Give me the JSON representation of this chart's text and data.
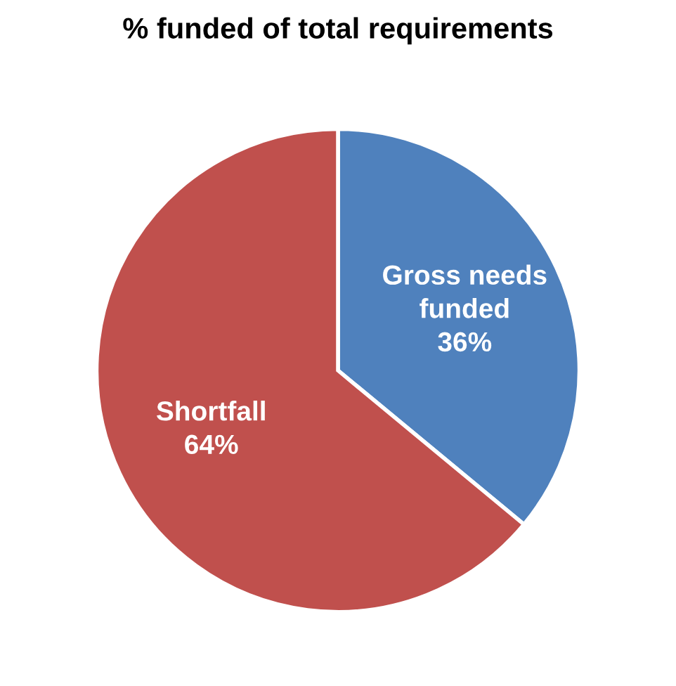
{
  "chart_data": {
    "type": "pie",
    "title": "% funded of total requirements",
    "categories": [
      "Gross needs funded",
      "Shortfall"
    ],
    "values": [
      36,
      64
    ],
    "colors": [
      "#4f81bd",
      "#c0504d"
    ],
    "value_labels": [
      "36%",
      "64%"
    ]
  }
}
